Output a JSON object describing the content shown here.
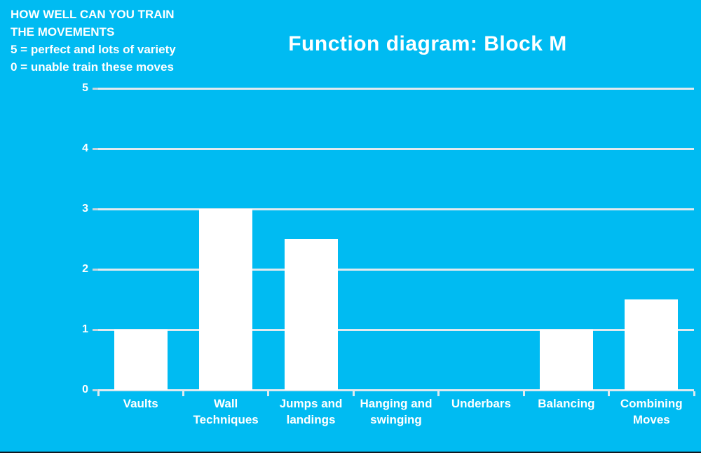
{
  "annotation": {
    "lines": [
      "HOW WELL CAN YOU TRAIN",
      "THE MOVEMENTS",
      "5 = perfect and lots of variety",
      "0 = unable train these moves"
    ]
  },
  "chart_data": {
    "type": "bar",
    "title": "Function diagram: Block M",
    "categories": [
      "Vaults",
      "Wall\nTechniques",
      "Jumps and\nlandings",
      "Hanging and\nswinging",
      "Underbars",
      "Balancing",
      "Combining\nMoves"
    ],
    "values": [
      1,
      3,
      2.5,
      0,
      0,
      1,
      1.5
    ],
    "xlabel": "",
    "ylabel": "",
    "ylim": [
      0,
      5
    ],
    "yticks": [
      0,
      1,
      2,
      3,
      4,
      5
    ],
    "grid": true,
    "legend": false,
    "colors": {
      "background": "#00bbf2",
      "bar": "#ffffff",
      "gridline": "#dfeaf0",
      "tick": "#c6d6de",
      "text": "#ffffff",
      "bottom_edge": "#101820"
    }
  }
}
